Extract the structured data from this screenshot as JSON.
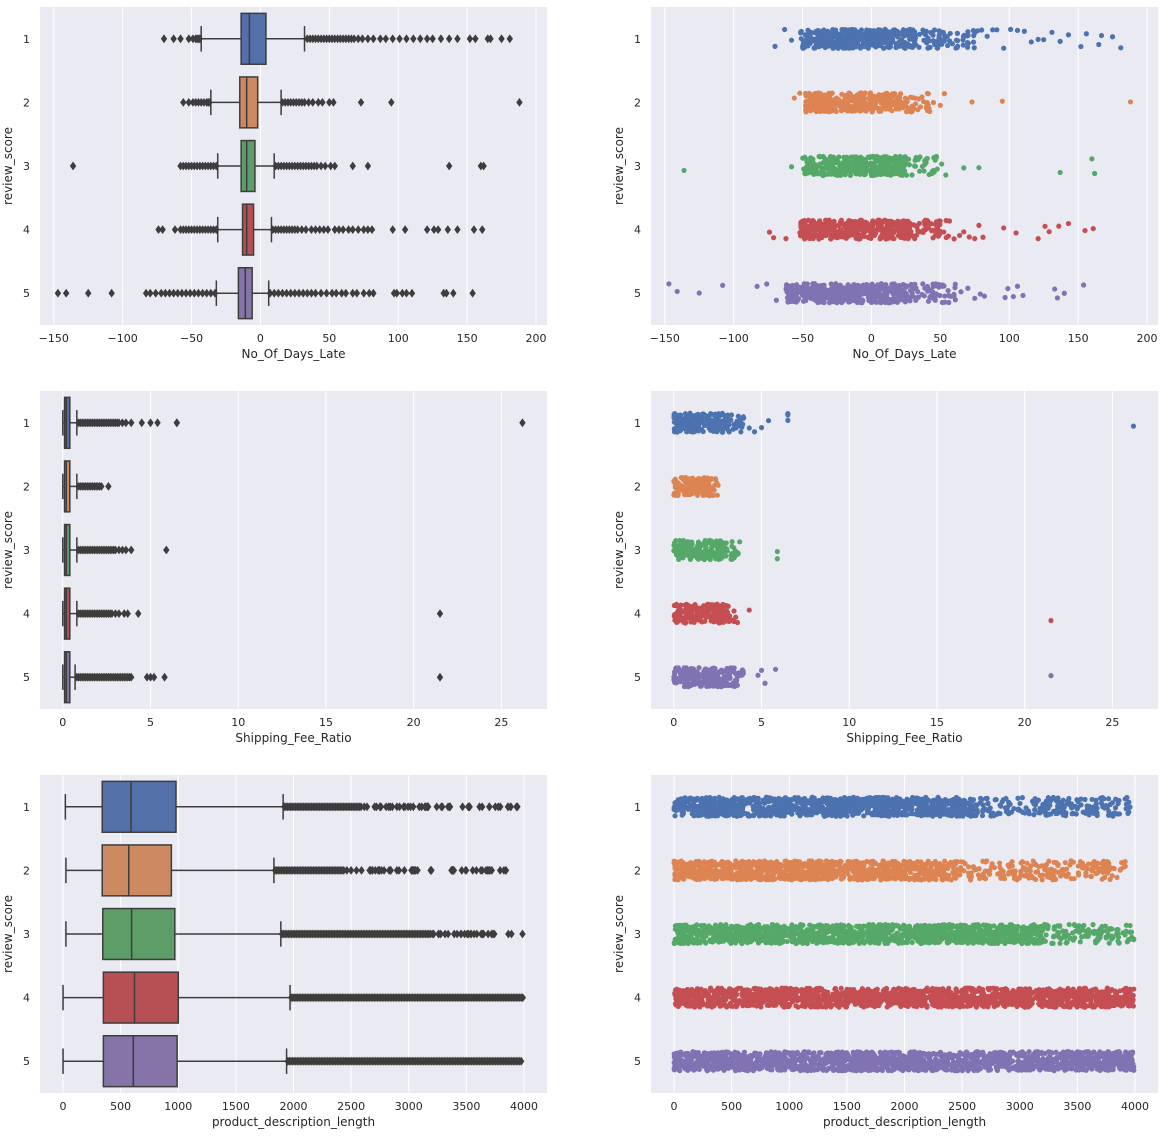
{
  "figure": {
    "background": "#ffffff",
    "axes_background": "#eaeaf2",
    "grid_color": "#ffffff",
    "box_line_color": "#3d3d3d",
    "palette": [
      "#4c72b0",
      "#dd8452",
      "#55a868",
      "#c44e52",
      "#8172b3"
    ],
    "box_palette": [
      "#5470a8",
      "#cd8a62",
      "#5d9e68",
      "#b65054",
      "#8474a8"
    ]
  },
  "chart_data": [
    {
      "id": "box-days-late",
      "type": "box",
      "grid": "vertical",
      "xlabel": "No_Of_Days_Late",
      "ylabel": "review_score",
      "categories": [
        "1",
        "2",
        "3",
        "4",
        "5"
      ],
      "xlim": [
        -160,
        208
      ],
      "xticks": [
        -150,
        -100,
        -50,
        0,
        50,
        100,
        150,
        200
      ],
      "boxes": [
        {
          "whisker_low": -43,
          "q1": -14,
          "median": -8,
          "q3": 4,
          "whisker_high": 32,
          "outliers": [
            -70,
            -63,
            -58,
            -52,
            -49,
            -47,
            -46,
            -45,
            -44,
            34,
            36,
            38,
            40,
            42,
            44,
            46,
            48,
            50,
            52,
            54,
            56,
            58,
            60,
            62,
            64,
            66,
            68,
            71,
            74,
            78,
            82,
            87,
            91,
            96,
            101,
            106,
            111,
            116,
            121,
            125,
            131,
            137,
            143,
            152,
            156,
            165,
            167,
            175,
            181
          ]
        },
        {
          "whisker_low": -36,
          "q1": -15,
          "median": -10,
          "q3": -2,
          "whisker_high": 15,
          "outliers": [
            -56,
            -52,
            -49,
            -47,
            -45,
            -43,
            -41,
            -39,
            -38,
            -37,
            16,
            18,
            20,
            22,
            24,
            26,
            28,
            30,
            32,
            35,
            38,
            42,
            45,
            50,
            53,
            73,
            95,
            188
          ]
        },
        {
          "whisker_low": -31,
          "q1": -14,
          "median": -10,
          "q3": -4,
          "whisker_high": 10,
          "outliers": [
            -136,
            -58,
            -56,
            -54,
            -52,
            -50,
            -48,
            -46,
            -44,
            -42,
            -40,
            -38,
            -36,
            -34,
            -32,
            11,
            13,
            15,
            17,
            19,
            21,
            23,
            25,
            27,
            29,
            31,
            33,
            35,
            37,
            39,
            41,
            44,
            47,
            51,
            54,
            67,
            78,
            137,
            160,
            162
          ]
        },
        {
          "whisker_low": -31,
          "q1": -13,
          "median": -10,
          "q3": -5,
          "whisker_high": 8,
          "outliers": [
            -74,
            -71,
            -62,
            -58,
            -56,
            -54,
            -52,
            -50,
            -48,
            -46,
            -44,
            -42,
            -40,
            -38,
            -36,
            -34,
            -32,
            9,
            11,
            13,
            15,
            17,
            19,
            21,
            23,
            25,
            27,
            30,
            33,
            37,
            40,
            43,
            46,
            49,
            54,
            57,
            60,
            64,
            67,
            71,
            75,
            78,
            81,
            96,
            105,
            121,
            126,
            129,
            136,
            143,
            155,
            161
          ]
        },
        {
          "whisker_low": -32,
          "q1": -16,
          "median": -11,
          "q3": -6,
          "whisker_high": 6,
          "outliers": [
            -147,
            -141,
            -125,
            -108,
            -83,
            -80,
            -76,
            -72,
            -69,
            -66,
            -63,
            -60,
            -57,
            -54,
            -51,
            -48,
            -45,
            -42,
            -39,
            -36,
            -33,
            7,
            10,
            13,
            16,
            19,
            22,
            25,
            28,
            31,
            34,
            37,
            40,
            44,
            48,
            52,
            55,
            59,
            62,
            67,
            70,
            75,
            79,
            82,
            97,
            99,
            103,
            106,
            110,
            133,
            135,
            140,
            154
          ]
        }
      ]
    },
    {
      "id": "strip-days-late",
      "type": "strip",
      "grid": "vertical",
      "xlabel": "No_Of_Days_Late",
      "ylabel": "review_score",
      "categories": [
        "1",
        "2",
        "3",
        "4",
        "5"
      ],
      "xlim": [
        -160,
        208
      ],
      "xticks": [
        -150,
        -100,
        -50,
        0,
        50,
        100,
        150,
        200
      ],
      "series": [
        {
          "name": "1",
          "dense_range": [
            -52,
            32
          ],
          "sparse_range": [
            32,
            75
          ],
          "points": [
            -70,
            -63,
            -58,
            77,
            80,
            84,
            88,
            91,
            96,
            101,
            106,
            111,
            116,
            121,
            125,
            131,
            137,
            143,
            152,
            156,
            165,
            167,
            175,
            181
          ]
        },
        {
          "name": "2",
          "dense_range": [
            -48,
            22
          ],
          "sparse_range": [
            22,
            43
          ],
          "points": [
            -56,
            -52,
            45,
            50,
            53,
            73,
            95,
            188
          ]
        },
        {
          "name": "3",
          "dense_range": [
            -50,
            24
          ],
          "sparse_range": [
            24,
            48
          ],
          "points": [
            -136,
            -58,
            51,
            54,
            67,
            78,
            137,
            160,
            162
          ]
        },
        {
          "name": "4",
          "dense_range": [
            -52,
            28
          ],
          "sparse_range": [
            28,
            58
          ],
          "points": [
            -74,
            -71,
            -62,
            60,
            64,
            67,
            71,
            75,
            78,
            81,
            96,
            105,
            121,
            126,
            129,
            136,
            143,
            155,
            161
          ]
        },
        {
          "name": "5",
          "dense_range": [
            -62,
            30
          ],
          "sparse_range": [
            30,
            62
          ],
          "points": [
            -147,
            -141,
            -125,
            -108,
            -83,
            -76,
            -69,
            65,
            70,
            75,
            79,
            82,
            97,
            99,
            103,
            106,
            110,
            133,
            135,
            140,
            154
          ]
        }
      ]
    },
    {
      "id": "box-shipping-fee",
      "type": "box",
      "grid": "vertical",
      "xlabel": "Shipping_Fee_Ratio",
      "ylabel": "review_score",
      "categories": [
        "1",
        "2",
        "3",
        "4",
        "5"
      ],
      "xlim": [
        -1.3,
        27.6
      ],
      "xticks": [
        0,
        5,
        10,
        15,
        20,
        25
      ],
      "boxes": [
        {
          "whisker_low": 0.0,
          "q1": 0.1,
          "median": 0.2,
          "q3": 0.4,
          "whisker_high": 0.8,
          "outliers": [
            0.9,
            1.0,
            1.1,
            1.2,
            1.3,
            1.4,
            1.5,
            1.6,
            1.7,
            1.8,
            1.9,
            2.0,
            2.1,
            2.2,
            2.3,
            2.4,
            2.5,
            2.6,
            2.7,
            2.8,
            2.9,
            3.0,
            3.1,
            3.2,
            3.4,
            3.6,
            3.9,
            4.5,
            5.0,
            5.4,
            6.5,
            6.5,
            26.2
          ]
        },
        {
          "whisker_low": 0.0,
          "q1": 0.1,
          "median": 0.2,
          "q3": 0.4,
          "whisker_high": 0.8,
          "outliers": [
            0.9,
            1.0,
            1.1,
            1.2,
            1.3,
            1.4,
            1.5,
            1.6,
            1.7,
            1.8,
            1.9,
            2.0,
            2.1,
            2.2,
            2.6
          ]
        },
        {
          "whisker_low": 0.0,
          "q1": 0.1,
          "median": 0.2,
          "q3": 0.4,
          "whisker_high": 0.8,
          "outliers": [
            0.9,
            1.0,
            1.1,
            1.2,
            1.3,
            1.4,
            1.5,
            1.6,
            1.7,
            1.8,
            1.9,
            2.0,
            2.1,
            2.2,
            2.3,
            2.4,
            2.5,
            2.6,
            2.7,
            2.8,
            2.9,
            3.0,
            3.2,
            3.4,
            3.6,
            3.9,
            5.9
          ]
        },
        {
          "whisker_low": 0.0,
          "q1": 0.1,
          "median": 0.2,
          "q3": 0.4,
          "whisker_high": 0.8,
          "outliers": [
            0.9,
            1.0,
            1.1,
            1.2,
            1.3,
            1.4,
            1.5,
            1.6,
            1.7,
            1.8,
            1.9,
            2.0,
            2.1,
            2.2,
            2.3,
            2.4,
            2.5,
            2.6,
            2.7,
            2.8,
            3.0,
            3.2,
            3.5,
            3.7,
            4.3,
            21.5
          ]
        },
        {
          "whisker_low": 0.0,
          "q1": 0.1,
          "median": 0.2,
          "q3": 0.4,
          "whisker_high": 0.7,
          "outliers": [
            0.8,
            0.9,
            1.0,
            1.1,
            1.2,
            1.3,
            1.4,
            1.5,
            1.6,
            1.7,
            1.8,
            1.9,
            2.0,
            2.1,
            2.2,
            2.3,
            2.4,
            2.5,
            2.6,
            2.7,
            2.8,
            2.9,
            3.0,
            3.1,
            3.2,
            3.3,
            3.4,
            3.5,
            3.6,
            3.7,
            3.8,
            3.9,
            4.8,
            5.0,
            5.2,
            5.8,
            21.5
          ]
        }
      ]
    },
    {
      "id": "strip-shipping-fee",
      "type": "strip",
      "grid": "vertical",
      "xlabel": "Shipping_Fee_Ratio",
      "ylabel": "review_score",
      "categories": [
        "1",
        "2",
        "3",
        "4",
        "5"
      ],
      "xlim": [
        -1.3,
        27.6
      ],
      "xticks": [
        0,
        5,
        10,
        15,
        20,
        25
      ],
      "series": [
        {
          "name": "1",
          "dense_range": [
            0.0,
            3.2
          ],
          "sparse_range": [
            3.2,
            4.0
          ],
          "points": [
            4.3,
            4.6,
            5.0,
            5.4,
            6.5,
            6.5,
            6.5,
            26.2
          ]
        },
        {
          "name": "2",
          "dense_range": [
            0.0,
            2.2
          ],
          "sparse_range": [
            2.2,
            2.6
          ],
          "points": []
        },
        {
          "name": "3",
          "dense_range": [
            0.0,
            3.0
          ],
          "sparse_range": [
            3.0,
            3.8
          ],
          "points": [
            5.9,
            5.9
          ]
        },
        {
          "name": "4",
          "dense_range": [
            0.0,
            3.0
          ],
          "sparse_range": [
            3.0,
            3.7
          ],
          "points": [
            4.3,
            21.5
          ]
        },
        {
          "name": "5",
          "dense_range": [
            0.0,
            3.7
          ],
          "sparse_range": [
            3.7,
            4.0
          ],
          "points": [
            4.8,
            5.0,
            5.2,
            5.8,
            21.5
          ]
        }
      ]
    },
    {
      "id": "box-description-length",
      "type": "box",
      "grid": "vertical",
      "xlabel": "product_description_length",
      "ylabel": "review_score",
      "categories": [
        "1",
        "2",
        "3",
        "4",
        "5"
      ],
      "xlim": [
        -200,
        4200
      ],
      "xticks": [
        0,
        500,
        1000,
        1500,
        2000,
        2500,
        3000,
        3500,
        4000
      ],
      "boxes": [
        {
          "whisker_low": 20,
          "q1": 340,
          "median": 590,
          "q3": 980,
          "whisker_high": 1910,
          "dense_outliers": [
            1920,
            2600
          ],
          "sparse_outliers": [
            2600,
            3960
          ]
        },
        {
          "whisker_low": 25,
          "q1": 340,
          "median": 570,
          "q3": 940,
          "whisker_high": 1830,
          "dense_outliers": [
            1840,
            2450
          ],
          "sparse_outliers": [
            2450,
            3920
          ]
        },
        {
          "whisker_low": 25,
          "q1": 345,
          "median": 595,
          "q3": 970,
          "whisker_high": 1890,
          "dense_outliers": [
            1900,
            3200
          ],
          "sparse_outliers": [
            3200,
            3990
          ]
        },
        {
          "whisker_low": 0,
          "q1": 350,
          "median": 620,
          "q3": 1000,
          "whisker_high": 1970,
          "dense_outliers": [
            1980,
            3990
          ],
          "sparse_outliers": []
        },
        {
          "whisker_low": 0,
          "q1": 350,
          "median": 610,
          "q3": 990,
          "whisker_high": 1940,
          "dense_outliers": [
            1950,
            3990
          ],
          "sparse_outliers": []
        }
      ]
    },
    {
      "id": "strip-description-length",
      "type": "strip",
      "grid": "vertical",
      "xlabel": "product_description_length",
      "ylabel": "review_score",
      "categories": [
        "1",
        "2",
        "3",
        "4",
        "5"
      ],
      "xlim": [
        -200,
        4200
      ],
      "xticks": [
        0,
        500,
        1000,
        1500,
        2000,
        2500,
        3000,
        3500,
        4000
      ],
      "series": [
        {
          "name": "1",
          "dense_range": [
            0,
            2600
          ],
          "sparse_range": [
            2600,
            3960
          ],
          "points": []
        },
        {
          "name": "2",
          "dense_range": [
            0,
            2450
          ],
          "sparse_range": [
            2450,
            3920
          ],
          "points": []
        },
        {
          "name": "3",
          "dense_range": [
            0,
            3200
          ],
          "sparse_range": [
            3200,
            3990
          ],
          "points": []
        },
        {
          "name": "4",
          "dense_range": [
            0,
            3990
          ],
          "sparse_range": [],
          "points": []
        },
        {
          "name": "5",
          "dense_range": [
            0,
            3990
          ],
          "sparse_range": [],
          "points": []
        }
      ]
    }
  ]
}
